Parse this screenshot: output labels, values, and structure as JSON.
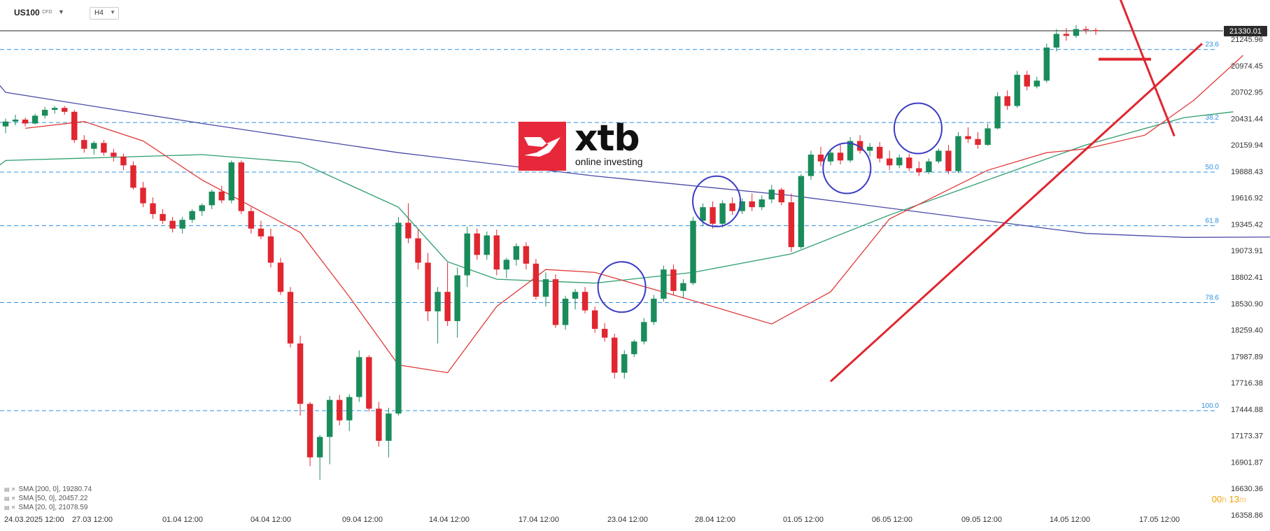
{
  "toolbar": {
    "symbol": "US100",
    "symbol_type": "CFD",
    "timeframe": "H4"
  },
  "logo": {
    "name": "xtb",
    "tagline": "online investing",
    "brand_color": "#e6283a"
  },
  "legend": [
    {
      "label": "SMA [200, 0]",
      "value": "19280.74",
      "color": "#4a4aa6"
    },
    {
      "label": "SMA [50, 0]",
      "value": "20457.22",
      "color": "#2e9e6e"
    },
    {
      "label": "SMA [20, 0]",
      "value": "21078.59",
      "color": "#e03a3a"
    }
  ],
  "timer": {
    "h_val": "00",
    "h_unit": "h",
    "m_val": "13",
    "m_unit": "m"
  },
  "chart_data": {
    "type": "candlestick",
    "ylim": [
      16358.86,
      21400
    ],
    "price_axis_ticks": [
      "21245.96",
      "20974.45",
      "20702.95",
      "20431.44",
      "20159.94",
      "19888.43",
      "19616.92",
      "19345.42",
      "19073.91",
      "18802.41",
      "18530.90",
      "18259.40",
      "17987.89",
      "17716.38",
      "17444.88",
      "17173.37",
      "16901.87",
      "16630.36",
      "16358.86"
    ],
    "current_price": "21330.01",
    "time_axis_ticks": [
      "24.03.2025 12:00",
      "27.03 12:00",
      "01.04 12:00",
      "04.04 12:00",
      "09.04 12:00",
      "14.04 12:00",
      "17.04 12:00",
      "23.04 12:00",
      "28.04 12:00",
      "01.05 12:00",
      "06.05 12:00",
      "09.05 12:00",
      "14.05 12:00",
      "17.05 12:00"
    ],
    "fibonacci": [
      {
        "label": "23.6",
        "price": 21140
      },
      {
        "label": "38.2",
        "price": 20390
      },
      {
        "label": "50.0",
        "price": 19880
      },
      {
        "label": "61.8",
        "price": 19330
      },
      {
        "label": "78.6",
        "price": 18540
      },
      {
        "label": "100.0",
        "price": 17430
      }
    ],
    "colors": {
      "up": "#1a8c5b",
      "down": "#e0262f",
      "fib": "#2d8fe0",
      "trend": "#e0262f",
      "circle": "#3b3bc4"
    },
    "ohlc": [
      [
        20350,
        20430,
        20280,
        20400
      ],
      [
        20400,
        20470,
        20360,
        20420
      ],
      [
        20420,
        20440,
        20350,
        20380
      ],
      [
        20380,
        20480,
        20370,
        20460
      ],
      [
        20460,
        20550,
        20430,
        20520
      ],
      [
        20520,
        20560,
        20480,
        20540
      ],
      [
        20540,
        20560,
        20470,
        20500
      ],
      [
        20500,
        20520,
        20180,
        20210
      ],
      [
        20210,
        20260,
        20080,
        20120
      ],
      [
        20120,
        20200,
        20060,
        20180
      ],
      [
        20180,
        20210,
        20050,
        20080
      ],
      [
        20080,
        20120,
        19990,
        20040
      ],
      [
        20040,
        20070,
        19900,
        19950
      ],
      [
        19950,
        19990,
        19700,
        19720
      ],
      [
        19720,
        19780,
        19520,
        19560
      ],
      [
        19560,
        19620,
        19400,
        19450
      ],
      [
        19450,
        19500,
        19350,
        19380
      ],
      [
        19380,
        19420,
        19260,
        19300
      ],
      [
        19300,
        19420,
        19250,
        19390
      ],
      [
        19390,
        19500,
        19360,
        19480
      ],
      [
        19480,
        19560,
        19430,
        19540
      ],
      [
        19540,
        19700,
        19500,
        19680
      ],
      [
        19680,
        19740,
        19560,
        19590
      ],
      [
        19590,
        20000,
        19560,
        19980
      ],
      [
        19980,
        20000,
        19450,
        19480
      ],
      [
        19480,
        19520,
        19250,
        19300
      ],
      [
        19300,
        19380,
        19190,
        19220
      ],
      [
        19220,
        19300,
        18900,
        18950
      ],
      [
        18950,
        19000,
        18620,
        18650
      ],
      [
        18650,
        18700,
        18080,
        18120
      ],
      [
        18120,
        18200,
        17380,
        17500
      ],
      [
        17500,
        17520,
        16860,
        16950
      ],
      [
        16950,
        17180,
        16720,
        17160
      ],
      [
        17160,
        17580,
        16880,
        17540
      ],
      [
        17540,
        17590,
        17280,
        17330
      ],
      [
        17330,
        17600,
        17220,
        17570
      ],
      [
        17570,
        18050,
        17520,
        17980
      ],
      [
        17980,
        18000,
        17420,
        17450
      ],
      [
        17450,
        17520,
        17060,
        17120
      ],
      [
        17120,
        17460,
        16950,
        17400
      ],
      [
        17400,
        19420,
        17380,
        19360
      ],
      [
        19360,
        19560,
        19150,
        19200
      ],
      [
        19200,
        19300,
        18880,
        18950
      ],
      [
        18950,
        19050,
        18350,
        18450
      ],
      [
        18450,
        18700,
        18120,
        18650
      ],
      [
        18650,
        18950,
        18300,
        18350
      ],
      [
        18350,
        18900,
        18180,
        18820
      ],
      [
        18820,
        19320,
        18700,
        19250
      ],
      [
        19250,
        19300,
        18980,
        19030
      ],
      [
        19030,
        19270,
        18980,
        19230
      ],
      [
        19230,
        19290,
        18820,
        18880
      ],
      [
        18880,
        19000,
        18790,
        18980
      ],
      [
        18980,
        19150,
        18920,
        19120
      ],
      [
        19120,
        19160,
        18880,
        18940
      ],
      [
        18940,
        18990,
        18570,
        18600
      ],
      [
        18600,
        18850,
        18500,
        18780
      ],
      [
        18780,
        18830,
        18280,
        18310
      ],
      [
        18310,
        18610,
        18260,
        18580
      ],
      [
        18580,
        18680,
        18470,
        18650
      ],
      [
        18650,
        18700,
        18430,
        18460
      ],
      [
        18460,
        18500,
        18230,
        18270
      ],
      [
        18270,
        18330,
        18140,
        18180
      ],
      [
        18180,
        18220,
        17760,
        17820
      ],
      [
        17820,
        18050,
        17760,
        18010
      ],
      [
        18010,
        18160,
        17980,
        18140
      ],
      [
        18140,
        18380,
        18110,
        18340
      ],
      [
        18340,
        18620,
        18310,
        18580
      ],
      [
        18580,
        18920,
        18550,
        18880
      ],
      [
        18880,
        18930,
        18620,
        18660
      ],
      [
        18660,
        18780,
        18590,
        18740
      ],
      [
        18740,
        19420,
        18720,
        19380
      ],
      [
        19380,
        19560,
        19330,
        19520
      ],
      [
        19520,
        19580,
        19300,
        19350
      ],
      [
        19350,
        19590,
        19310,
        19560
      ],
      [
        19560,
        19620,
        19440,
        19480
      ],
      [
        19480,
        19610,
        19450,
        19580
      ],
      [
        19580,
        19660,
        19480,
        19520
      ],
      [
        19520,
        19640,
        19490,
        19600
      ],
      [
        19600,
        19750,
        19560,
        19700
      ],
      [
        19700,
        19720,
        19540,
        19570
      ],
      [
        19570,
        19660,
        19060,
        19110
      ],
      [
        19110,
        19860,
        19090,
        19840
      ],
      [
        19840,
        20100,
        19800,
        20060
      ],
      [
        20060,
        20140,
        19940,
        19990
      ],
      [
        19990,
        20120,
        19950,
        20080
      ],
      [
        20080,
        20160,
        19960,
        20000
      ],
      [
        20000,
        20240,
        19980,
        20200
      ],
      [
        20200,
        20260,
        20070,
        20100
      ],
      [
        20100,
        20180,
        20040,
        20140
      ],
      [
        20140,
        20190,
        19980,
        20020
      ],
      [
        20020,
        20100,
        19900,
        19950
      ],
      [
        19950,
        20060,
        19920,
        20030
      ],
      [
        20030,
        20070,
        19890,
        19920
      ],
      [
        19920,
        19990,
        19840,
        19880
      ],
      [
        19880,
        20020,
        19860,
        19990
      ],
      [
        19990,
        20120,
        19970,
        20100
      ],
      [
        20100,
        20160,
        19860,
        19890
      ],
      [
        19890,
        20290,
        19870,
        20250
      ],
      [
        20250,
        20340,
        20180,
        20220
      ],
      [
        20220,
        20290,
        20120,
        20160
      ],
      [
        20160,
        20380,
        20150,
        20330
      ],
      [
        20330,
        20700,
        20320,
        20660
      ],
      [
        20660,
        20720,
        20520,
        20560
      ],
      [
        20560,
        20920,
        20540,
        20880
      ],
      [
        20880,
        20920,
        20720,
        20760
      ],
      [
        20760,
        20860,
        20740,
        20820
      ],
      [
        20820,
        21200,
        20800,
        21160
      ],
      [
        21160,
        21350,
        21120,
        21300
      ],
      [
        21300,
        21360,
        21230,
        21280
      ],
      [
        21280,
        21390,
        21260,
        21350
      ],
      [
        21350,
        21380,
        21300,
        21340
      ],
      [
        21340,
        21360,
        21290,
        21330
      ]
    ],
    "sma200": [
      [
        -1,
        20820
      ],
      [
        0,
        20700
      ],
      [
        20,
        20380
      ],
      [
        40,
        20080
      ],
      [
        60,
        19840
      ],
      [
        80,
        19640
      ],
      [
        100,
        19380
      ],
      [
        110,
        19250
      ],
      [
        120,
        19210
      ],
      [
        150,
        19220
      ],
      [
        175,
        19300
      ]
    ],
    "sma50": [
      [
        -1,
        19920
      ],
      [
        0,
        20000
      ],
      [
        20,
        20060
      ],
      [
        30,
        19980
      ],
      [
        40,
        19520
      ],
      [
        45,
        18960
      ],
      [
        50,
        18780
      ],
      [
        60,
        18740
      ],
      [
        70,
        18850
      ],
      [
        80,
        19040
      ],
      [
        90,
        19440
      ],
      [
        100,
        19800
      ],
      [
        110,
        20160
      ],
      [
        120,
        20440
      ],
      [
        125,
        20500
      ]
    ],
    "sma20": [
      [
        2,
        20330
      ],
      [
        8,
        20400
      ],
      [
        14,
        20200
      ],
      [
        20,
        19800
      ],
      [
        30,
        19260
      ],
      [
        35,
        18600
      ],
      [
        40,
        17900
      ],
      [
        45,
        17820
      ],
      [
        50,
        18500
      ],
      [
        55,
        18880
      ],
      [
        60,
        18850
      ],
      [
        70,
        18560
      ],
      [
        78,
        18320
      ],
      [
        84,
        18650
      ],
      [
        90,
        19400
      ],
      [
        96,
        19700
      ],
      [
        100,
        19900
      ],
      [
        106,
        20080
      ],
      [
        110,
        20120
      ],
      [
        116,
        20260
      ],
      [
        121,
        20620
      ],
      [
        126,
        21080
      ]
    ],
    "trend_lines": [
      [
        [
          0,
          17730
        ],
        [
          145,
          21200
        ]
      ],
      [
        [
          0,
          20250
        ],
        [
          145,
          21950
        ]
      ]
    ],
    "short_line": [
      21040,
      0.35
    ],
    "circles": [
      [
        0.52,
        18700,
        0.05,
        280
      ],
      [
        0.6,
        19580,
        0.05,
        280
      ],
      [
        0.71,
        19920,
        0.06,
        300
      ],
      [
        0.77,
        20330,
        0.04,
        220
      ]
    ]
  }
}
